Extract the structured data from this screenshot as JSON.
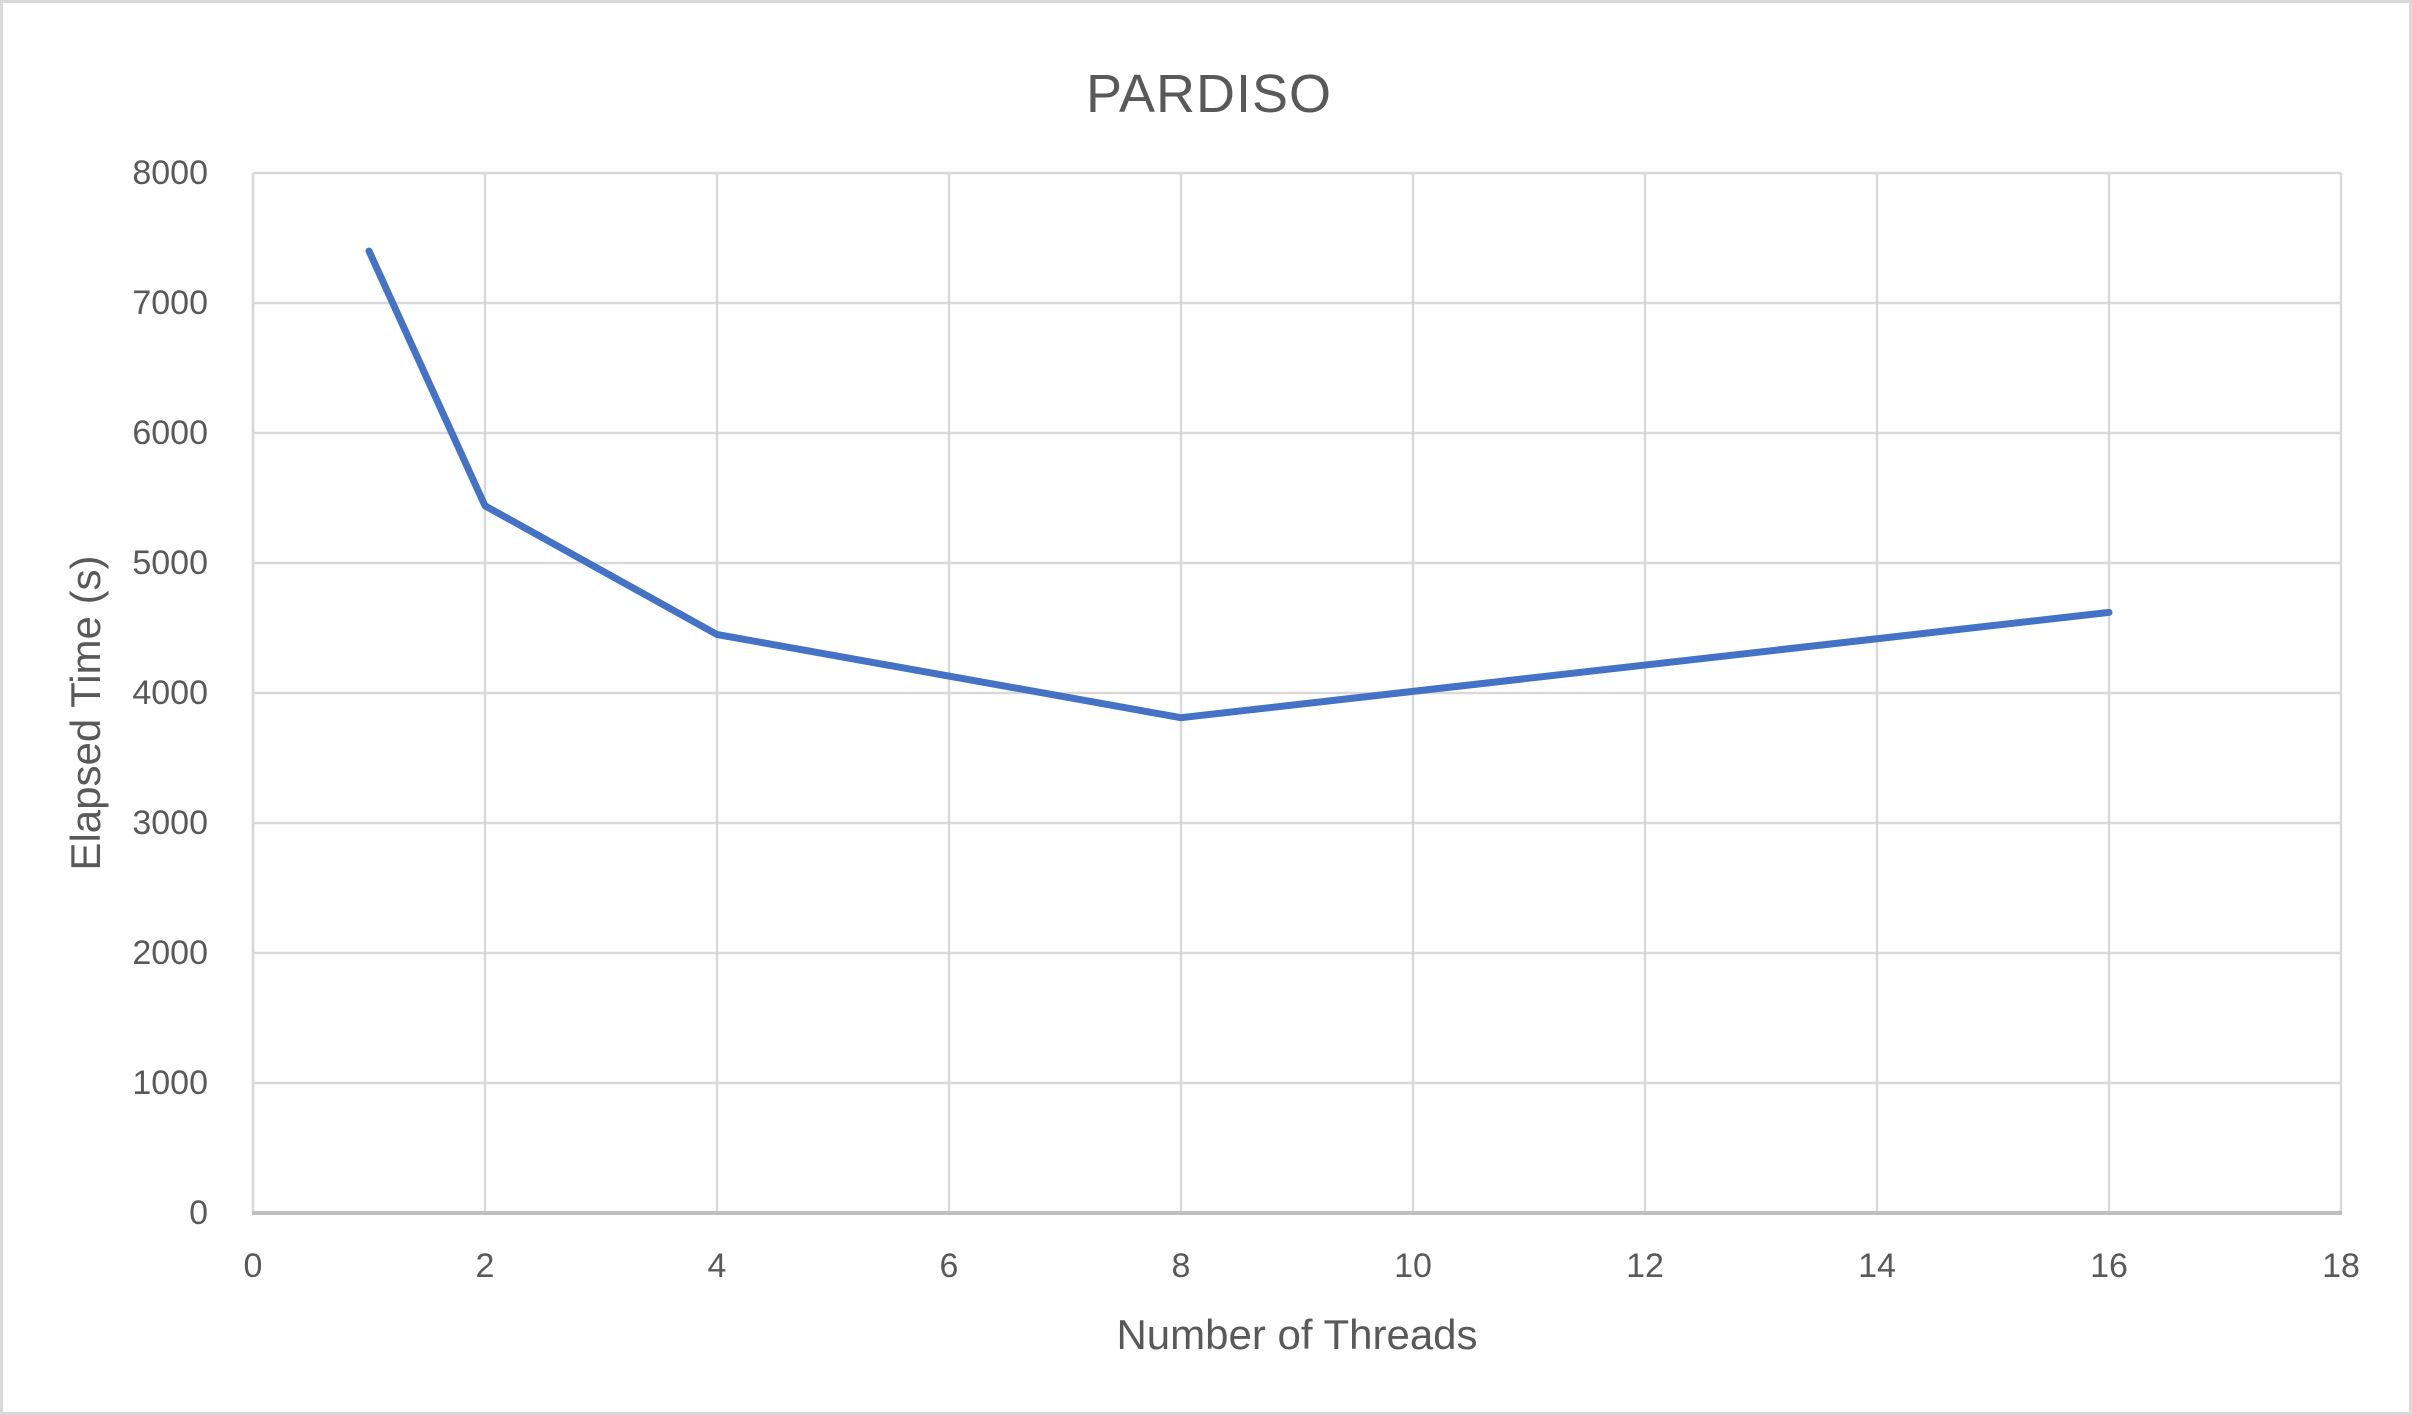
{
  "chart_data": {
    "type": "line",
    "title": "PARDISO",
    "xlabel": "Number of Threads",
    "ylabel": "Elapsed Time (s)",
    "series": [
      {
        "name": "Elapsed Time",
        "x": [
          1,
          2,
          4,
          8,
          16
        ],
        "y": [
          7400,
          5440,
          4450,
          3810,
          4620
        ]
      }
    ],
    "xlim": [
      0,
      18
    ],
    "ylim": [
      0,
      8000
    ],
    "x_ticks": [
      0,
      2,
      4,
      6,
      8,
      10,
      12,
      14,
      16,
      18
    ],
    "y_ticks": [
      0,
      1000,
      2000,
      3000,
      4000,
      5000,
      6000,
      7000,
      8000
    ],
    "grid": true,
    "legend": false,
    "colors": {
      "line": "#4472C4",
      "gridline": "#D9D9D9",
      "axis_line": "#BFBFBF",
      "text": "#595959",
      "background": "#FFFFFF",
      "canvas_border": "#D9D9D9"
    }
  }
}
